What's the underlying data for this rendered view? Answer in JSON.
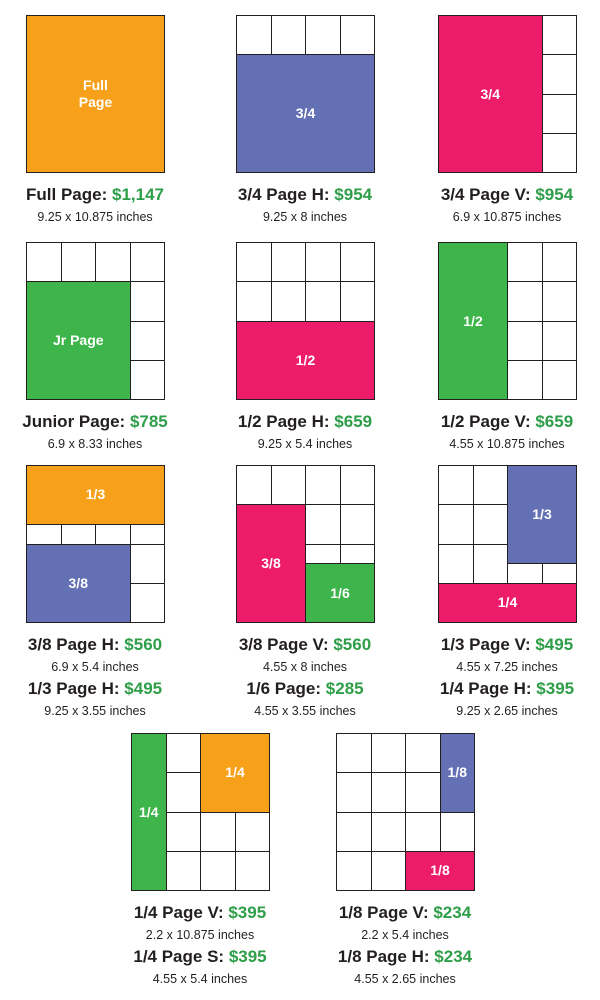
{
  "cards": [
    {
      "blocks": [
        {
          "label": "Full Page"
        }
      ],
      "entries": [
        {
          "name": "Full Page:",
          "price": "$1,147",
          "size": "9.25 x 10.875 inches"
        }
      ]
    },
    {
      "blocks": [
        {
          "label": "3/4"
        }
      ],
      "entries": [
        {
          "name": "3/4 Page H:",
          "price": "$954",
          "size": "9.25 x 8 inches"
        }
      ]
    },
    {
      "blocks": [
        {
          "label": "3/4"
        }
      ],
      "entries": [
        {
          "name": "3/4 Page V:",
          "price": "$954",
          "size": "6.9 x 10.875 inches"
        }
      ]
    },
    {
      "blocks": [
        {
          "label": "Jr Page"
        }
      ],
      "entries": [
        {
          "name": "Junior Page:",
          "price": "$785",
          "size": "6.9 x 8.33 inches"
        }
      ]
    },
    {
      "blocks": [
        {
          "label": "1/2"
        }
      ],
      "entries": [
        {
          "name": "1/2 Page H:",
          "price": "$659",
          "size": "9.25 x 5.4 inches"
        }
      ]
    },
    {
      "blocks": [
        {
          "label": "1/2"
        }
      ],
      "entries": [
        {
          "name": "1/2 Page V:",
          "price": "$659",
          "size": "4.55 x 10.875 inches"
        }
      ]
    },
    {
      "blocks": [
        {
          "label": "1/3"
        },
        {
          "label": "3/8"
        }
      ],
      "entries": [
        {
          "name": "3/8 Page H:",
          "price": "$560",
          "size": "6.9 x 5.4 inches"
        },
        {
          "name": "1/3 Page H:",
          "price": "$495",
          "size": "9.25 x 3.55 inches"
        }
      ]
    },
    {
      "blocks": [
        {
          "label": "3/8"
        },
        {
          "label": "1/6"
        }
      ],
      "entries": [
        {
          "name": "3/8 Page V:",
          "price": "$560",
          "size": "4.55 x 8 inches"
        },
        {
          "name": "1/6 Page:",
          "price": "$285",
          "size": "4.55 x 3.55 inches"
        }
      ]
    },
    {
      "blocks": [
        {
          "label": "1/3"
        },
        {
          "label": "1/4"
        }
      ],
      "entries": [
        {
          "name": "1/3 Page V:",
          "price": "$495",
          "size": "4.55 x 7.25 inches"
        },
        {
          "name": "1/4 Page H:",
          "price": "$395",
          "size": "9.25 x 2.65 inches"
        }
      ]
    },
    {
      "blocks": [
        {
          "label": "1/4"
        },
        {
          "label": "1/4"
        }
      ],
      "entries": [
        {
          "name": "1/4 Page V:",
          "price": "$395",
          "size": "2.2 x 10.875 inches"
        },
        {
          "name": "1/4 Page S:",
          "price": "$395",
          "size": "4.55 x 5.4 inches"
        }
      ]
    },
    {
      "blocks": [
        {
          "label": "1/8"
        },
        {
          "label": "1/8"
        }
      ],
      "entries": [
        {
          "name": "1/8 Page V:",
          "price": "$234",
          "size": "2.2 x 5.4 inches"
        },
        {
          "name": "1/8 Page H:",
          "price": "$234",
          "size": "4.55 x 2.65 inches"
        }
      ]
    }
  ]
}
